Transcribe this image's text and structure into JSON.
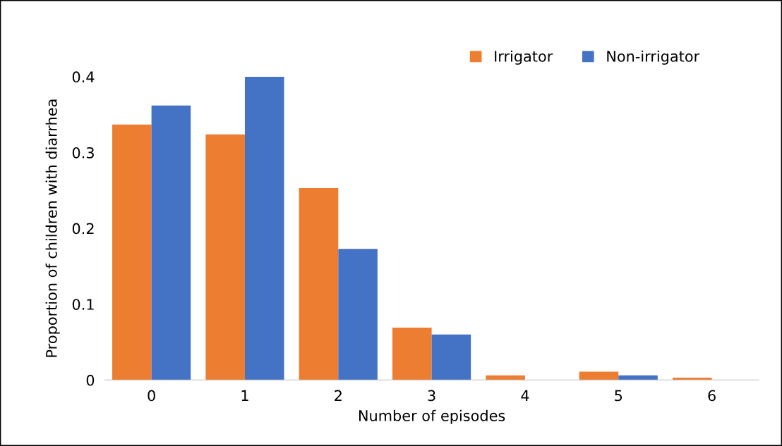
{
  "chart_data": {
    "type": "bar",
    "xlabel": "Number of episodes",
    "ylabel": "Proportion of children with diarrhea",
    "categories": [
      "0",
      "1",
      "2",
      "3",
      "4",
      "5",
      "6"
    ],
    "series": [
      {
        "name": "Irrigator",
        "color": "#ed7d31",
        "values": [
          0.337,
          0.324,
          0.253,
          0.069,
          0.006,
          0.011,
          0.003
        ]
      },
      {
        "name": "Non-irrigator",
        "color": "#4472c4",
        "values": [
          0.362,
          0.4,
          0.173,
          0.06,
          0,
          0.006,
          0
        ]
      }
    ],
    "ylim": [
      0,
      0.4
    ],
    "yticks": [
      {
        "value": 0,
        "label": "0"
      },
      0.1,
      0.2,
      0.3,
      0.4
    ],
    "grid": false,
    "legend": "top right"
  }
}
